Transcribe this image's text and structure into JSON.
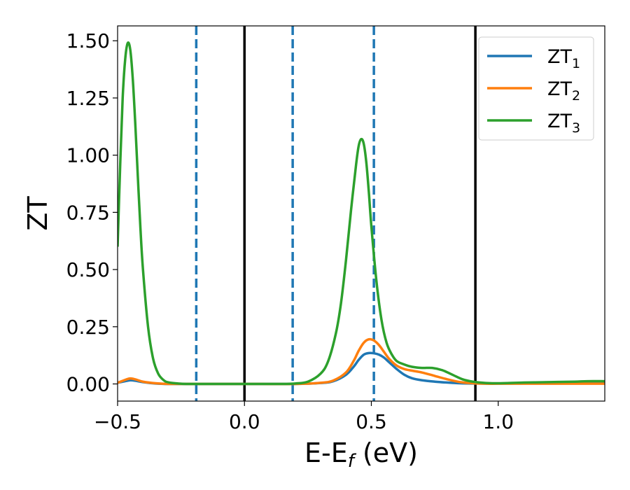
{
  "chart_data": {
    "type": "line",
    "xlabel": "E-E",
    "xlabel_sub": "f",
    "xlabel_unit": " (eV)",
    "ylabel": "ZT",
    "xlim": [
      -0.5,
      1.42
    ],
    "ylim": [
      -0.075,
      1.565
    ],
    "xticks": [
      {
        "value": -0.5,
        "label": "−0.5"
      },
      {
        "value": 0.0,
        "label": "0.0"
      },
      {
        "value": 0.5,
        "label": "0.5"
      },
      {
        "value": 1.0,
        "label": "1.0"
      }
    ],
    "yticks": [
      {
        "value": 0.0,
        "label": "0.00"
      },
      {
        "value": 0.25,
        "label": "0.25"
      },
      {
        "value": 0.5,
        "label": "0.50"
      },
      {
        "value": 0.75,
        "label": "0.75"
      },
      {
        "value": 1.0,
        "label": "1.00"
      },
      {
        "value": 1.25,
        "label": "1.25"
      },
      {
        "value": 1.5,
        "label": "1.50"
      }
    ],
    "legend_position": "top-right",
    "vlines": [
      {
        "x": -0.19,
        "style": "dashed",
        "color": "#1f77b4"
      },
      {
        "x": 0.0,
        "style": "solid",
        "color": "#000000"
      },
      {
        "x": 0.19,
        "style": "dashed",
        "color": "#1f77b4"
      },
      {
        "x": 0.51,
        "style": "dashed",
        "color": "#1f77b4"
      },
      {
        "x": 0.91,
        "style": "solid",
        "color": "#000000"
      }
    ],
    "series": [
      {
        "name": "ZT",
        "name_sub": "1",
        "color": "#1f77b4",
        "x": [
          -0.5,
          -0.47,
          -0.45,
          -0.43,
          -0.4,
          -0.35,
          -0.3,
          -0.2,
          0.0,
          0.2,
          0.3,
          0.35,
          0.4,
          0.43,
          0.45,
          0.47,
          0.49,
          0.51,
          0.53,
          0.55,
          0.57,
          0.6,
          0.63,
          0.66,
          0.7,
          0.75,
          0.8,
          0.85,
          0.9,
          0.95,
          1.0,
          1.1,
          1.2,
          1.3,
          1.4,
          1.42
        ],
        "y": [
          0.005,
          0.012,
          0.016,
          0.014,
          0.008,
          0.002,
          0.0,
          0.0,
          0.0,
          0.0,
          0.004,
          0.012,
          0.04,
          0.075,
          0.105,
          0.128,
          0.135,
          0.134,
          0.128,
          0.115,
          0.095,
          0.065,
          0.04,
          0.025,
          0.016,
          0.01,
          0.006,
          0.003,
          0.002,
          0.002,
          0.002,
          0.003,
          0.004,
          0.005,
          0.006,
          0.006
        ]
      },
      {
        "name": "ZT",
        "name_sub": "2",
        "color": "#ff7f0e",
        "x": [
          -0.5,
          -0.47,
          -0.45,
          -0.43,
          -0.4,
          -0.35,
          -0.3,
          -0.2,
          0.0,
          0.2,
          0.3,
          0.35,
          0.4,
          0.43,
          0.45,
          0.47,
          0.49,
          0.51,
          0.53,
          0.55,
          0.57,
          0.6,
          0.63,
          0.66,
          0.7,
          0.75,
          0.8,
          0.85,
          0.9,
          0.95,
          1.0,
          1.1,
          1.2,
          1.3,
          1.4,
          1.42
        ],
        "y": [
          0.005,
          0.018,
          0.024,
          0.02,
          0.01,
          0.003,
          0.0,
          0.0,
          0.0,
          0.0,
          0.005,
          0.015,
          0.05,
          0.1,
          0.145,
          0.18,
          0.195,
          0.19,
          0.17,
          0.14,
          0.11,
          0.08,
          0.065,
          0.058,
          0.05,
          0.035,
          0.02,
          0.008,
          0.003,
          0.001,
          0.001,
          0.001,
          0.001,
          0.001,
          0.001,
          0.001
        ]
      },
      {
        "name": "ZT",
        "name_sub": "3",
        "color": "#2ca02c",
        "x": [
          -0.5,
          -0.49,
          -0.48,
          -0.47,
          -0.46,
          -0.45,
          -0.44,
          -0.43,
          -0.42,
          -0.41,
          -0.4,
          -0.38,
          -0.36,
          -0.34,
          -0.32,
          -0.3,
          -0.25,
          -0.2,
          0.0,
          0.15,
          0.2,
          0.25,
          0.3,
          0.33,
          0.36,
          0.38,
          0.4,
          0.42,
          0.44,
          0.45,
          0.46,
          0.47,
          0.48,
          0.49,
          0.5,
          0.52,
          0.54,
          0.56,
          0.58,
          0.6,
          0.63,
          0.66,
          0.7,
          0.74,
          0.78,
          0.82,
          0.86,
          0.9,
          0.95,
          1.0,
          1.1,
          1.2,
          1.3,
          1.35,
          1.42
        ],
        "y": [
          0.6,
          0.95,
          1.25,
          1.42,
          1.49,
          1.46,
          1.33,
          1.13,
          0.9,
          0.68,
          0.5,
          0.25,
          0.11,
          0.045,
          0.018,
          0.007,
          0.001,
          0.0,
          0.0,
          0.0,
          0.002,
          0.01,
          0.045,
          0.1,
          0.22,
          0.35,
          0.54,
          0.76,
          0.96,
          1.04,
          1.07,
          1.05,
          0.97,
          0.84,
          0.69,
          0.45,
          0.28,
          0.18,
          0.13,
          0.1,
          0.085,
          0.075,
          0.07,
          0.07,
          0.06,
          0.04,
          0.02,
          0.01,
          0.004,
          0.003,
          0.006,
          0.008,
          0.01,
          0.012,
          0.012
        ]
      }
    ]
  }
}
